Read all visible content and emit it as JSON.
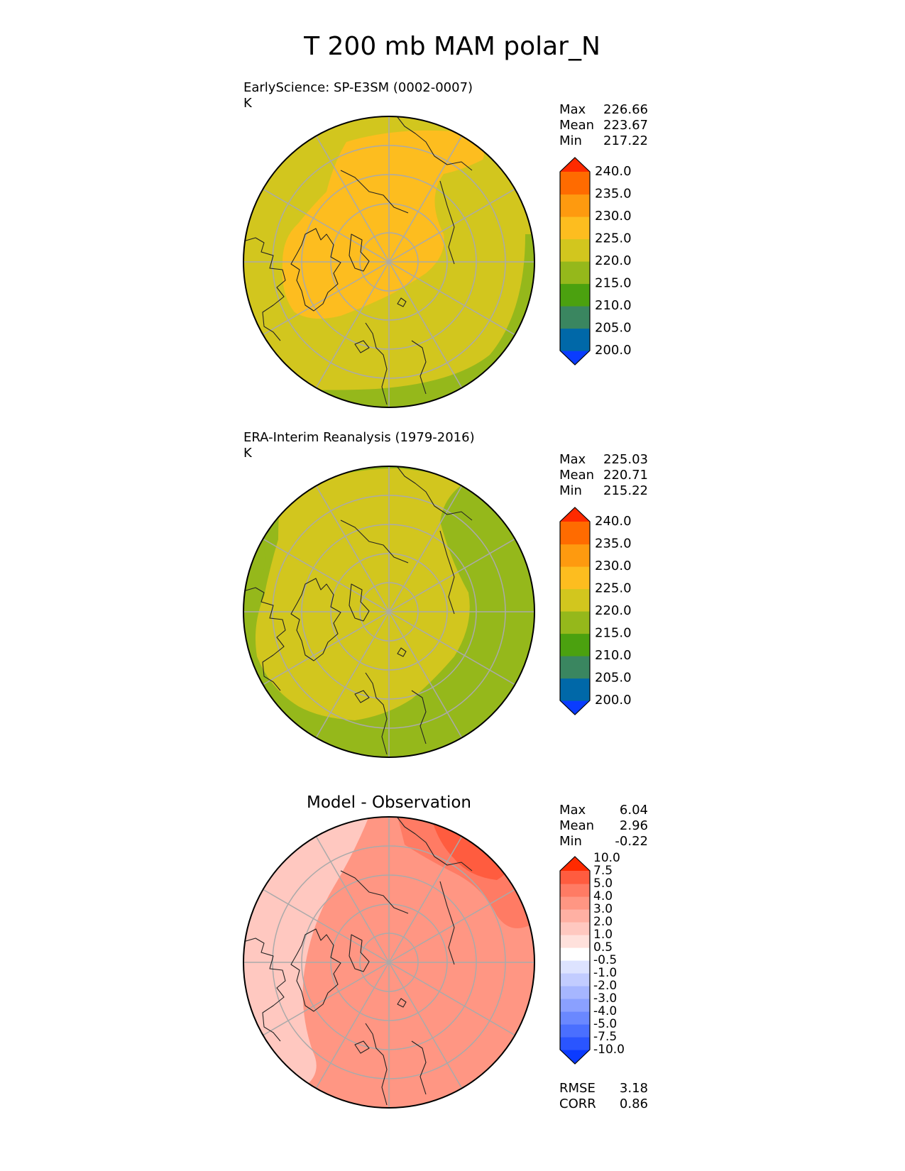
{
  "title": "T 200 mb MAM polar_N",
  "colors": {
    "model_colorbar": [
      "#0a3cff",
      "#0068a8",
      "#3a8660",
      "#4ba10f",
      "#95b81b",
      "#d2c61e",
      "#fdbd1f",
      "#fe9a0f",
      "#ff6b00",
      "#ff2a00"
    ],
    "diff_colorbar": [
      "#0b3bff",
      "#2a55ff",
      "#4a6fff",
      "#6a88ff",
      "#8aa0ff",
      "#a6b6ff",
      "#c2ccff",
      "#dde3ff",
      "#ffffff",
      "#ffe1dc",
      "#ffc8c0",
      "#ffb0a3",
      "#ff9683",
      "#ff7b64",
      "#ff5c3f",
      "#ff2a00"
    ],
    "land_outline": "#222222",
    "graticule": "#aaaaaa"
  },
  "chart_data": [
    {
      "type": "heatmap",
      "projection": "north-polar-stereographic",
      "title": "EarlyScience: SP-E3SM (0002-0007)",
      "units": "K",
      "stats": [
        {
          "label": "Max",
          "value": "226.66"
        },
        {
          "label": "Mean",
          "value": "223.67"
        },
        {
          "label": "Min",
          "value": "217.22"
        }
      ],
      "colorbar_levels": [
        "200.0",
        "205.0",
        "210.0",
        "215.0",
        "220.0",
        "225.0",
        "230.0",
        "235.0",
        "240.0"
      ],
      "colorbar_extend": "both"
    },
    {
      "type": "heatmap",
      "projection": "north-polar-stereographic",
      "title": "ERA-Interim Reanalysis (1979-2016)",
      "units": "K",
      "stats": [
        {
          "label": "Max",
          "value": "225.03"
        },
        {
          "label": "Mean",
          "value": "220.71"
        },
        {
          "label": "Min",
          "value": "215.22"
        }
      ],
      "colorbar_levels": [
        "200.0",
        "205.0",
        "210.0",
        "215.0",
        "220.0",
        "225.0",
        "230.0",
        "235.0",
        "240.0"
      ],
      "colorbar_extend": "both"
    },
    {
      "type": "heatmap",
      "projection": "north-polar-stereographic",
      "title": "Model - Observation",
      "stats": [
        {
          "label": "Max",
          "value": "6.04"
        },
        {
          "label": "Mean",
          "value": "2.96"
        },
        {
          "label": "Min",
          "value": "-0.22"
        }
      ],
      "colorbar_levels": [
        "-10.0",
        "-7.5",
        "-5.0",
        "-4.0",
        "-3.0",
        "-2.0",
        "-1.0",
        "-0.5",
        "0.5",
        "1.0",
        "2.0",
        "3.0",
        "4.0",
        "5.0",
        "7.5",
        "10.0"
      ],
      "colorbar_extend": "both",
      "metrics": [
        {
          "label": "RMSE",
          "value": "3.18"
        },
        {
          "label": "CORR",
          "value": "0.86"
        }
      ]
    }
  ]
}
